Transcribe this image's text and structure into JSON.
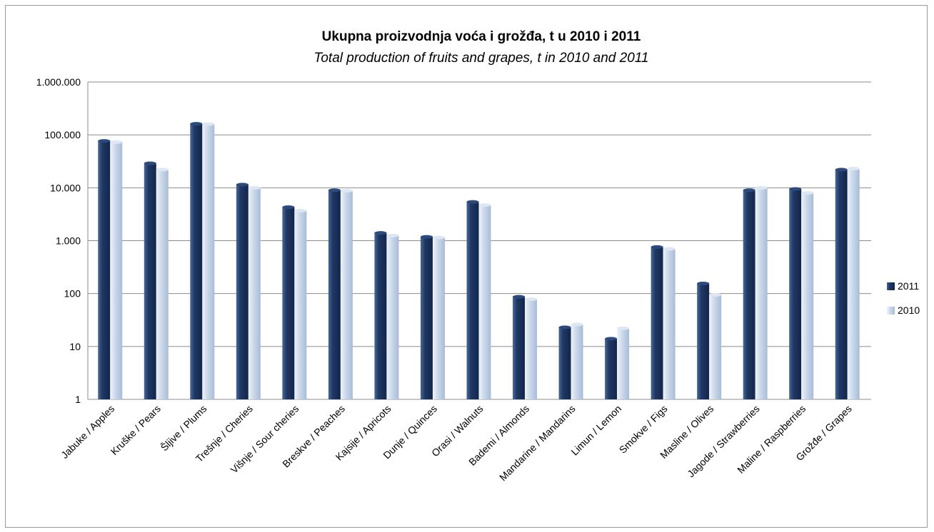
{
  "chart_data": {
    "type": "bar",
    "title": "Ukupna proizvodnja voća i grožđa, t u 2010 i 2011",
    "subtitle": "Total production of fruits and grapes, t in 2010 and 2011",
    "xlabel": "",
    "ylabel": "",
    "yscale": "log",
    "ylim": [
      1,
      1000000
    ],
    "yticks": [
      1,
      10,
      100,
      1000,
      10000,
      100000,
      1000000
    ],
    "ytick_labels": [
      "1",
      "10",
      "100",
      "1.000",
      "10.000",
      "100.000",
      "1.000.000"
    ],
    "grid": true,
    "legend_position": "right",
    "categories": [
      "Jabuke / Apples",
      "Kruške / Pears",
      "Šljive / Plums",
      "Trešnje / Cheries",
      "Višnje / Sour cheries",
      "Breskve / Peaches",
      "Kajsije / Apricots",
      "Dunje / Quinces",
      "Orasi / Walnuts",
      "Bademi / Almonds",
      "Mandarine / Mandarins",
      "Limun / Lemon",
      "Smokve / Figs",
      "Masline / Olives",
      "Jagode / Strawberries",
      "Maline / Raspberries",
      "Grožđe / Grapes"
    ],
    "series": [
      {
        "name": "2011",
        "color": "#1f3864",
        "values": [
          77000,
          29000,
          162000,
          11500,
          4300,
          9000,
          1400,
          1180,
          5400,
          87,
          23,
          14,
          760,
          155,
          9000,
          9500,
          22000
        ]
      },
      {
        "name": "2010",
        "color": "#c9d7ea",
        "values": [
          73000,
          22000,
          160000,
          10000,
          3700,
          8800,
          1250,
          1150,
          4700,
          78,
          26,
          22,
          700,
          95,
          10000,
          8000,
          23000
        ]
      }
    ]
  }
}
